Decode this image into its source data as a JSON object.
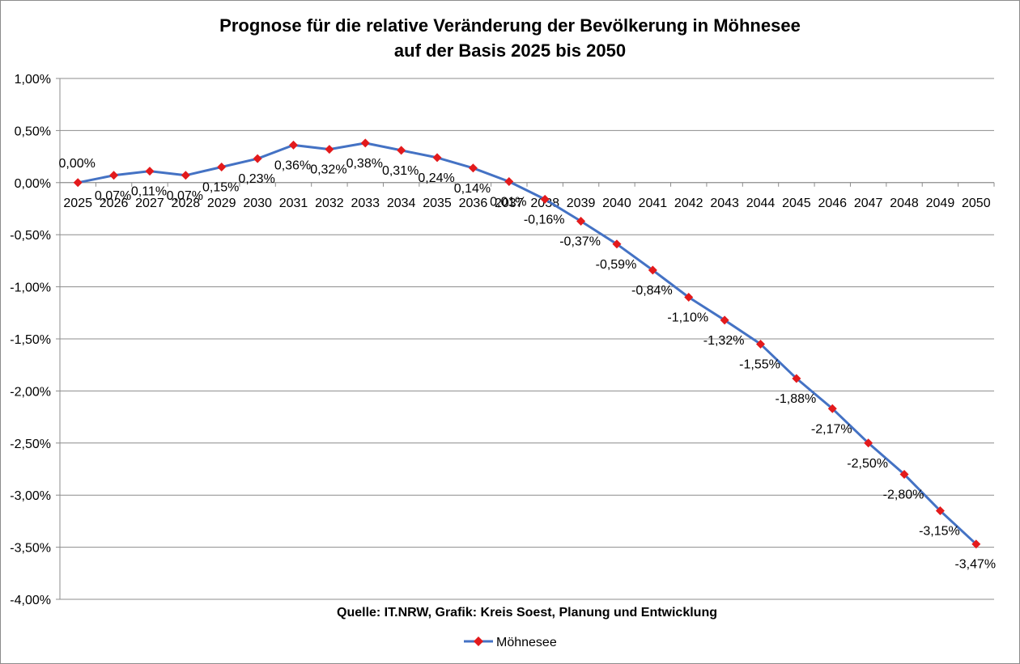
{
  "chart_data": {
    "type": "line",
    "title": [
      "Prognose für die relative Veränderung der Bevölkerung in Möhnesee",
      "auf der Basis 2025 bis 2050"
    ],
    "x": [
      "2025",
      "2026",
      "2027",
      "2028",
      "2029",
      "2030",
      "2031",
      "2032",
      "2033",
      "2034",
      "2035",
      "2036",
      "2037",
      "2038",
      "2039",
      "2040",
      "2041",
      "2042",
      "2043",
      "2044",
      "2045",
      "2046",
      "2047",
      "2048",
      "2049",
      "2050"
    ],
    "series": [
      {
        "name": "Möhnesee",
        "values": [
          0.0,
          0.07,
          0.11,
          0.07,
          0.15,
          0.23,
          0.36,
          0.32,
          0.38,
          0.31,
          0.24,
          0.14,
          0.01,
          -0.16,
          -0.37,
          -0.59,
          -0.84,
          -1.1,
          -1.32,
          -1.55,
          -1.88,
          -2.17,
          -2.5,
          -2.8,
          -3.15,
          -3.47
        ],
        "labels": [
          "0,00%",
          "0,07%",
          "0,11%",
          "0,07%",
          "0,15%",
          "0,23%",
          "0,36%",
          "0,32%",
          "0,38%",
          "0,31%",
          "0,24%",
          "0,14%",
          "0,01%",
          "-0,16%",
          "-0,37%",
          "-0,59%",
          "-0,84%",
          "-1,10%",
          "-1,32%",
          "-1,55%",
          "-1,88%",
          "-2,17%",
          "-2,50%",
          "-2,80%",
          "-3,15%",
          "-3,47%"
        ],
        "line_color": "#4472C4",
        "marker_color": "#E31A1C",
        "marker": "diamond"
      }
    ],
    "ylim": [
      -4.0,
      1.0
    ],
    "yticks": [
      1.0,
      0.5,
      0.0,
      -0.5,
      -1.0,
      -1.5,
      -2.0,
      -2.5,
      -3.0,
      -3.5,
      -4.0
    ],
    "ytick_labels": [
      "1,00%",
      "0,50%",
      "0,00%",
      "-0,50%",
      "-1,00%",
      "-1,50%",
      "-2,00%",
      "-2,50%",
      "-3,00%",
      "-3,50%",
      "-4,00%"
    ],
    "grid": true,
    "legend": "bottom",
    "source_note": "Quelle: IT.NRW, Grafik: Kreis Soest, Planung und Entwicklung"
  }
}
